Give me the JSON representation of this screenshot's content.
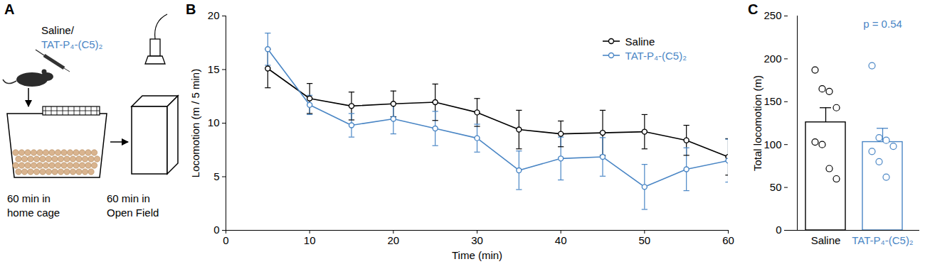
{
  "diagram": {
    "title": "A",
    "injection": [
      "Saline/",
      "TAT-P₄-(C5)₂"
    ],
    "injection_colors": [
      "#000000",
      "#4a86c5"
    ],
    "steps": [
      [
        "60 min in",
        "home cage"
      ],
      [
        "60 min in",
        "Open Field"
      ]
    ]
  },
  "chart_data": [
    {
      "type": "line",
      "title": "B",
      "x": [
        5,
        10,
        15,
        20,
        25,
        30,
        35,
        40,
        45,
        50,
        55,
        60
      ],
      "xlim": [
        0,
        60
      ],
      "xticks": [
        0,
        10,
        20,
        30,
        40,
        50,
        60
      ],
      "ylim": [
        0,
        20
      ],
      "yticks": [
        0,
        5,
        10,
        15,
        20
      ],
      "xlabel": "Time (min)",
      "ylabel": "Locomotion (m / 5 min)",
      "legend": "upper right",
      "marker": "circle",
      "series": [
        {
          "name": "Saline",
          "color": "#000000",
          "values": [
            15.1,
            12.3,
            11.6,
            11.8,
            11.95,
            11.0,
            9.4,
            9.0,
            9.1,
            9.2,
            8.4,
            6.85
          ],
          "errors": [
            1.8,
            1.4,
            1.3,
            1.2,
            1.7,
            1.3,
            1.8,
            1.2,
            2.1,
            1.6,
            1.4,
            1.7
          ]
        },
        {
          "name": "TAT-P₄-(C5)₂",
          "color": "#4a86c5",
          "values": [
            16.9,
            11.7,
            9.8,
            10.4,
            9.5,
            8.6,
            5.6,
            6.7,
            6.85,
            4.05,
            5.7,
            6.5
          ],
          "errors": [
            1.5,
            0.9,
            1.1,
            1.4,
            1.6,
            1.3,
            1.8,
            2.0,
            1.8,
            2.1,
            2.0,
            2.0
          ]
        }
      ]
    },
    {
      "type": "bar",
      "title": "C",
      "categories": [
        "Saline",
        "TAT-P₄-(C5)₂"
      ],
      "values": [
        126,
        103
      ],
      "errors": [
        17,
        16
      ],
      "colors": [
        "#000000",
        "#4a86c5"
      ],
      "points": [
        [
          187,
          165,
          162,
          143,
          103,
          100,
          72,
          60
        ],
        [
          192,
          108,
          105,
          98,
          92,
          80,
          62
        ]
      ],
      "ylim": [
        0,
        250
      ],
      "yticks": [
        0,
        50,
        100,
        150,
        200,
        250
      ],
      "ylabel": "Total locomotion (m)",
      "annotations": [
        {
          "text": "p = 0.54",
          "category": "TAT-P₄-(C5)₂",
          "color": "#4a86c5"
        }
      ]
    }
  ]
}
